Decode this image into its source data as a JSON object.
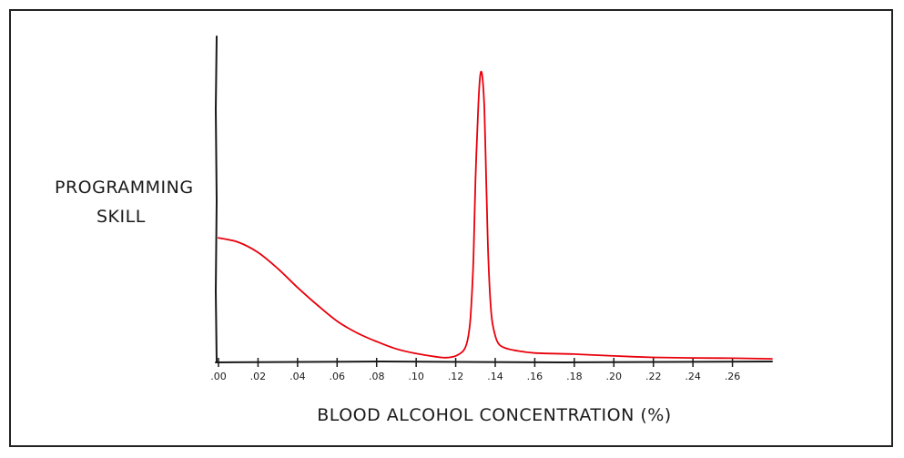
{
  "chart_data": {
    "type": "line",
    "title": "",
    "ylabel_lines": [
      "PROGRAMMING",
      "SKILL"
    ],
    "xlabel": "BLOOD ALCOHOL CONCENTRATION (%)",
    "xlim": [
      0,
      0.28
    ],
    "ylim": [
      0,
      100
    ],
    "x_ticks": [
      0.0,
      0.02,
      0.04,
      0.06,
      0.08,
      0.1,
      0.12,
      0.14,
      0.16,
      0.18,
      0.2,
      0.22,
      0.24,
      0.26
    ],
    "x_tick_labels": [
      ".00",
      ".02",
      ".04",
      ".06",
      ".08",
      ".10",
      ".12",
      ".14",
      ".16",
      ".18",
      ".20",
      ".22",
      ".24",
      ".26"
    ],
    "grid": false,
    "series": [
      {
        "color": "#e8000b",
        "x": [
          0.0,
          0.01,
          0.02,
          0.03,
          0.04,
          0.05,
          0.06,
          0.07,
          0.08,
          0.09,
          0.1,
          0.11,
          0.115,
          0.12,
          0.124,
          0.126,
          0.1275,
          0.129,
          0.13,
          0.1315,
          0.1325,
          0.1335,
          0.1345,
          0.1355,
          0.1365,
          0.138,
          0.14,
          0.142,
          0.145,
          0.15,
          0.16,
          0.18,
          0.2,
          0.22,
          0.24,
          0.26,
          0.28
        ],
        "y": [
          42,
          40.5,
          37,
          31.5,
          25,
          19,
          13.5,
          9.5,
          6.5,
          4,
          2.4,
          1.3,
          1,
          1.6,
          3.5,
          7,
          15,
          35,
          62,
          88,
          98,
          97,
          86,
          60,
          35,
          16,
          8.5,
          5.5,
          4.3,
          3.5,
          2.6,
          2.2,
          1.6,
          1.1,
          0.9,
          0.8,
          0.6
        ]
      }
    ]
  }
}
